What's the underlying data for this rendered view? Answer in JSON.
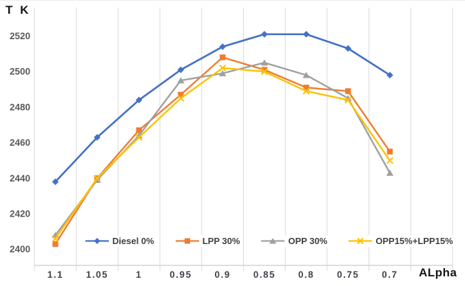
{
  "chart_data": {
    "type": "line",
    "y_axis_label": "T K",
    "x_axis_label": "ALpha",
    "categories": [
      "1.1",
      "1.05",
      "1",
      "0.95",
      "0.9",
      "0.85",
      "0.8",
      "0.75",
      "0.7"
    ],
    "y_ticks": [
      2400,
      2420,
      2440,
      2460,
      2480,
      2500,
      2520
    ],
    "ylim": [
      2391,
      2536
    ],
    "grid": "vertical-only",
    "legend_position": "bottom-inside",
    "gridline_color": "#D9D9D9",
    "axis_line_color": "#C9C9C9",
    "tick_label_color": "#595959",
    "x_label_color": "#42424a",
    "series": [
      {
        "name": "Diesel 0%",
        "color": "#4472C4",
        "marker": "diamond",
        "values": [
          2438,
          2463,
          2484,
          2501,
          2514,
          2521,
          2521,
          2513,
          2498
        ]
      },
      {
        "name": "LPP 30%",
        "color": "#ED7D31",
        "marker": "square",
        "values": [
          2403,
          2440,
          2467,
          2487,
          2508,
          2501,
          2491,
          2489,
          2455
        ]
      },
      {
        "name": "OPP 30%",
        "color": "#A0A0A0",
        "marker": "triangle",
        "values": [
          2408,
          2439,
          2464,
          2495,
          2499,
          2505,
          2498,
          2485,
          2443
        ]
      },
      {
        "name": "OPP15%+LPP15%",
        "color": "#FFC000",
        "marker": "x",
        "values": [
          2406,
          2440,
          2463,
          2485,
          2502,
          2500,
          2489,
          2484,
          2450
        ]
      }
    ]
  }
}
